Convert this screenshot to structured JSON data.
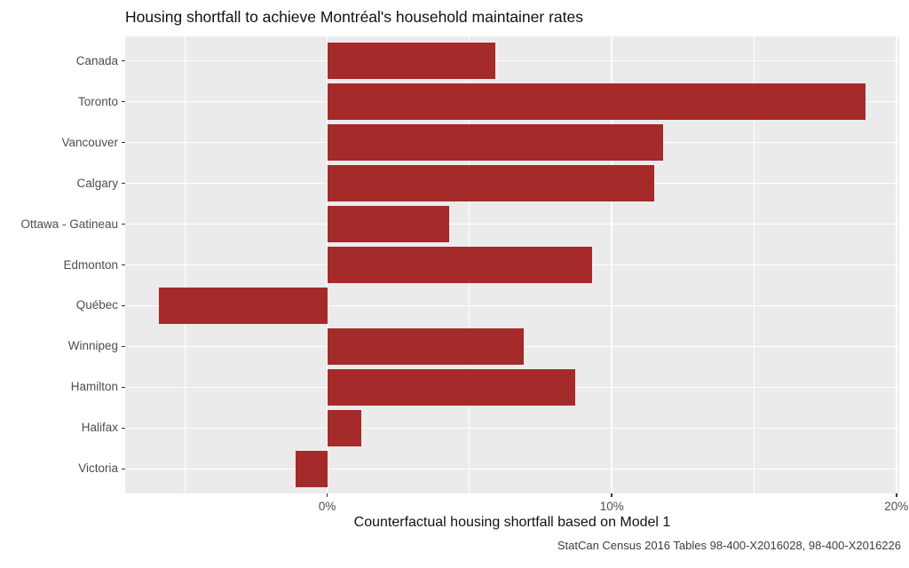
{
  "chart_data": {
    "type": "bar",
    "orientation": "horizontal",
    "title": "Housing shortfall to achieve Montréal's household maintainer rates",
    "xlabel": "Counterfactual housing shortfall based on Model 1",
    "caption": "StatCan Census 2016 Tables 98-400-X2016028, 98-400-X2016226",
    "categories": [
      "Canada",
      "Toronto",
      "Vancouver",
      "Calgary",
      "Ottawa - Gatineau",
      "Edmonton",
      "Québec",
      "Winnipeg",
      "Hamilton",
      "Halifax",
      "Victoria"
    ],
    "values": [
      5.9,
      18.9,
      11.8,
      11.5,
      4.3,
      9.3,
      -5.9,
      6.9,
      8.7,
      1.2,
      -1.1
    ],
    "unit": "%",
    "x_ticks": [
      {
        "value": 0,
        "label": "0%"
      },
      {
        "value": 10,
        "label": "10%"
      },
      {
        "value": 20,
        "label": "20%"
      }
    ],
    "x_minor_ticks": [
      -5,
      5,
      15
    ],
    "xlim": [
      -7.1,
      20.1
    ],
    "grid": "on",
    "legend": "none",
    "bar_color": "#A52A2A",
    "panel_bg": "#EBEBEB",
    "grid_color": "#FFFFFF",
    "axis_text_color": "#4D4D4D"
  }
}
